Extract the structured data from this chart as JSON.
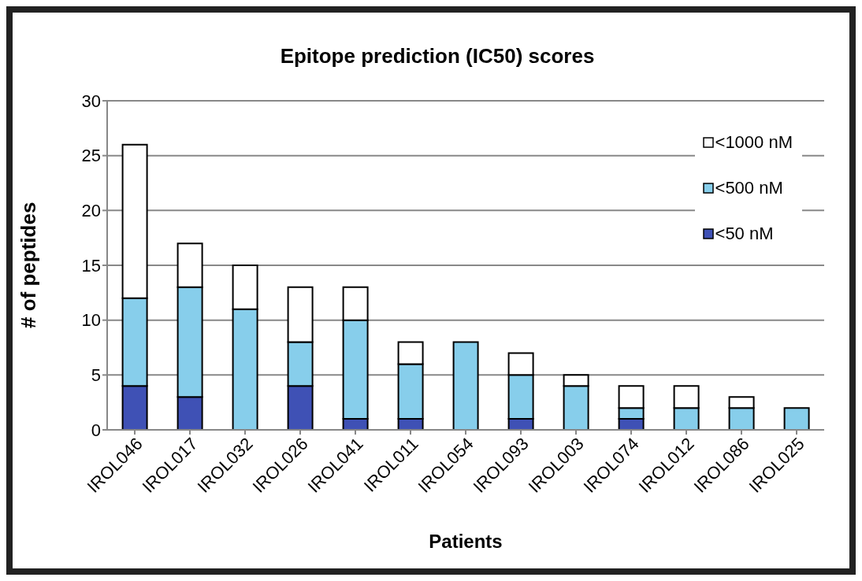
{
  "chart_data": {
    "type": "bar",
    "title": "Epitope prediction (IC50) scores",
    "xlabel": "Patients",
    "ylabel": "# of peptides",
    "categories": [
      "IROL046",
      "IROL017",
      "IROL032",
      "IROL026",
      "IROL041",
      "IROL011",
      "IROL054",
      "IROL093",
      "IROL003",
      "IROL074",
      "IROL012",
      "IROL086",
      "IROL025"
    ],
    "stacked": true,
    "series": [
      {
        "name": "<50 nM",
        "color": "#3f51b5",
        "values": [
          4,
          3,
          0,
          4,
          1,
          1,
          0,
          1,
          0,
          1,
          0,
          0,
          0
        ]
      },
      {
        "name": "<500 nM",
        "color": "#87ceeb",
        "values": [
          8,
          10,
          11,
          4,
          9,
          5,
          8,
          4,
          4,
          1,
          2,
          2,
          2
        ]
      },
      {
        "name": "<1000 nM",
        "color": "#ffffff",
        "values": [
          14,
          4,
          4,
          5,
          3,
          2,
          0,
          2,
          1,
          2,
          2,
          1,
          0
        ]
      }
    ],
    "ylim": [
      0,
      30
    ],
    "yticks": [
      0,
      5,
      10,
      15,
      20,
      25,
      30
    ],
    "grid": "y",
    "legend": "top right"
  }
}
